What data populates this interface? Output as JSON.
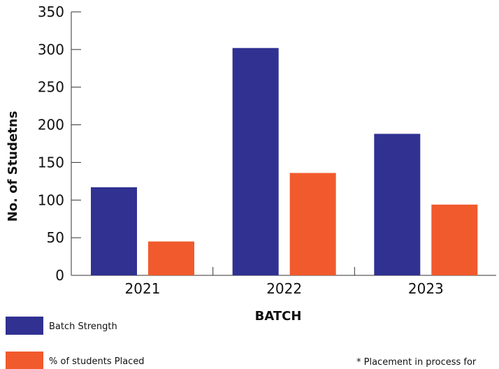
{
  "chart_data": {
    "type": "bar",
    "categories": [
      "2021",
      "2022",
      "2023"
    ],
    "series": [
      {
        "name": "Batch Strength",
        "values": [
          117,
          302,
          188
        ],
        "color": "#303191"
      },
      {
        "name": "% of students Placed",
        "values": [
          45,
          136,
          94
        ],
        "color": "#f15a2c"
      }
    ],
    "xlabel": "BATCH",
    "ylabel": "No. of Studetns",
    "ylim": [
      0,
      350
    ],
    "yticks": [
      0,
      50,
      100,
      150,
      200,
      250,
      300,
      350
    ],
    "grid": false,
    "legend_position": "bottom-left",
    "note": "* Placement in process for"
  }
}
